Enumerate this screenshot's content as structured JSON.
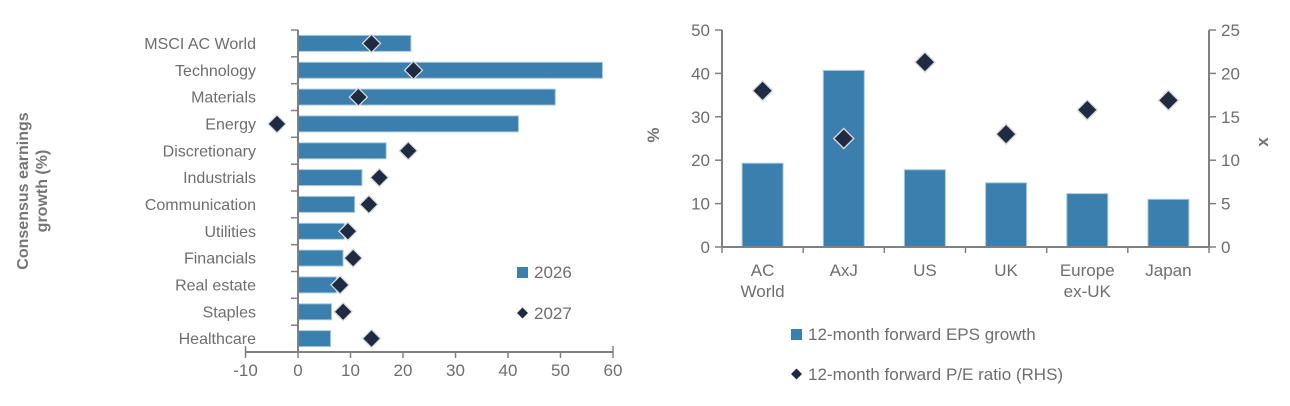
{
  "page": {
    "background": "#FFFFFF"
  },
  "colors": {
    "bar_fill": "#3A7FAE",
    "bar_border": "#A9CBDD",
    "diamond_fill": "#1E2B43",
    "diamond_border": "#D8D8D8",
    "axis_line": "#808080",
    "tick_text": "#6E6E6E",
    "axis_title_text": "#757575",
    "legend_text": "#6E6E6E"
  },
  "chart_data": [
    {
      "id": "sector-consensus-earnings-growth",
      "type": "bar",
      "orientation": "horizontal",
      "axis_title": "Consensus earnings growth (%)",
      "axis_title_lines": [
        "Consensus earnings",
        "growth (%)"
      ],
      "categories": [
        "MSCI AC World",
        "Technology",
        "Materials",
        "Energy",
        "Discretionary",
        "Industrials",
        "Communication",
        "Utilities",
        "Financials",
        "Real estate",
        "Staples",
        "Healthcare"
      ],
      "series": [
        {
          "name": "2026",
          "marker": "bar",
          "values": [
            21.5,
            58,
            49,
            42,
            16.8,
            12.2,
            10.8,
            8.8,
            8.6,
            7.3,
            6.4,
            6.2
          ]
        },
        {
          "name": "2027",
          "marker": "diamond",
          "values": [
            14,
            22,
            11.5,
            -4,
            21,
            15.5,
            13.5,
            9.5,
            10.5,
            8,
            8.6,
            14
          ]
        }
      ],
      "xlim": [
        -10,
        60
      ],
      "xticks": [
        -10,
        0,
        10,
        20,
        30,
        40,
        50,
        60
      ],
      "legend": [
        "2026",
        "2027"
      ],
      "legend_position": "inside-right",
      "grid": false
    },
    {
      "id": "regional-eps-growth-pe-ratio",
      "type": "bar+scatter",
      "categories": [
        "AC World",
        "AxJ",
        "US",
        "UK",
        "Europe ex-UK",
        "Japan"
      ],
      "category_label_lines": [
        [
          "AC",
          "World"
        ],
        [
          "AxJ"
        ],
        [
          "US"
        ],
        [
          "UK"
        ],
        [
          "Europe",
          "ex-UK"
        ],
        [
          "Japan"
        ]
      ],
      "left_axis": {
        "label": "%",
        "lim": [
          0,
          50
        ],
        "ticks": [
          0,
          10,
          20,
          30,
          40,
          50
        ]
      },
      "right_axis": {
        "label": "x",
        "lim": [
          0,
          25
        ],
        "ticks": [
          0,
          5,
          10,
          15,
          20,
          25
        ]
      },
      "series": [
        {
          "name": "12-month forward EPS growth",
          "marker": "bar",
          "axis": "left",
          "values": [
            19.3,
            40.7,
            17.8,
            14.8,
            12.3,
            11
          ]
        },
        {
          "name": "12-month forward P/E ratio (RHS)",
          "marker": "diamond",
          "axis": "right",
          "values": [
            18,
            12.5,
            21.3,
            13,
            15.8,
            16.9
          ]
        }
      ],
      "legend_position": "below",
      "grid": false
    }
  ]
}
